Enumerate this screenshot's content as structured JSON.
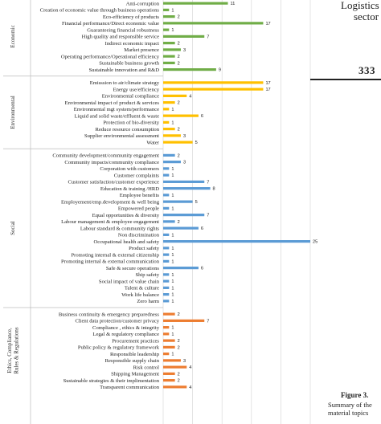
{
  "page_side": {
    "heading_line1": "Logistics",
    "heading_line2": "sector",
    "page_number": "333",
    "figure_label": "Figure 3.",
    "caption_line1": "Summary of the",
    "caption_line2": "material topics"
  },
  "chart_data": {
    "type": "bar",
    "orientation": "horizontal",
    "title": "",
    "xlabel": "",
    "ylabel": "",
    "xlim": [
      0,
      25
    ],
    "grid": true,
    "groups": [
      {
        "name": "Economic",
        "color": "#70ad47",
        "categories": [
          "Anti-corruption",
          "Creation of economic value through business operations",
          "Eco-efficiency of products",
          "Financial performance/Direct economic value",
          "Guaranteeing financial robustness",
          "High quality and responsible service",
          "Indirect economic impact",
          "Market presence",
          "Operating performance/Operational efficiency",
          "Sustainable business growth",
          "Sustainable innovation and R&D"
        ],
        "values": [
          11,
          1,
          2,
          17,
          1,
          7,
          2,
          3,
          2,
          2,
          9
        ]
      },
      {
        "name": "Environmental",
        "color": "#ffc000",
        "categories": [
          "Emisssion to air/climate strategy",
          "Energy use/efficiency",
          "Environmental compliance",
          "Environmental impact of product & services",
          "Environmental mgt system/performance",
          "Liquid and solid waste/effluent & waste",
          "Protection of bio-diversity",
          "Reduce resource consumption",
          "Supplier environmental assessment",
          "Water"
        ],
        "values": [
          17,
          17,
          4,
          2,
          1,
          6,
          1,
          2,
          3,
          5
        ]
      },
      {
        "name": "Social",
        "color": "#5b9bd5",
        "categories": [
          "Community development/community engagement",
          "Community impacts/community compliance",
          "Corporation with customers",
          "Customer complaints",
          "Customer satisfaction/customer experience",
          "Education & training /HRD",
          "Employee benefits",
          "Employement/emp.development & well being",
          "Empowered people",
          "Equal opportunities & diversity",
          "Labour management & employee engagement",
          "Labour standard & community rights",
          "Non discrimination",
          "Occupational health and safety",
          "Product safety",
          "Promoting internal & external citizenship",
          "Promoting internal & external communication",
          "Safe & secure operations",
          "Ship safety",
          "Social impact of value chain",
          "Talent & culture",
          "Work life balance",
          "Zero harm"
        ],
        "values": [
          2,
          3,
          1,
          1,
          7,
          8,
          1,
          5,
          1,
          7,
          2,
          6,
          1,
          25,
          1,
          1,
          1,
          6,
          1,
          1,
          1,
          1,
          1
        ]
      },
      {
        "name": "Ethics, Compliance, Rules & Regulations",
        "color": "#ed7d31",
        "categories": [
          "Business continuity & emergency preparedness",
          "Client data protection/customer privacy",
          "Compliance , ethics & integrity",
          "Legal & regulatory compliance",
          "Procurement practices",
          "Public policy & regulatory framework",
          "Responsible leadership",
          "Responsible supply chain",
          "Risk control",
          "Shipping Management",
          "Sustainable strategies & their implimentation",
          "Transparent communication"
        ],
        "values": [
          2,
          7,
          1,
          1,
          2,
          2,
          1,
          3,
          4,
          2,
          2,
          4
        ]
      }
    ]
  }
}
